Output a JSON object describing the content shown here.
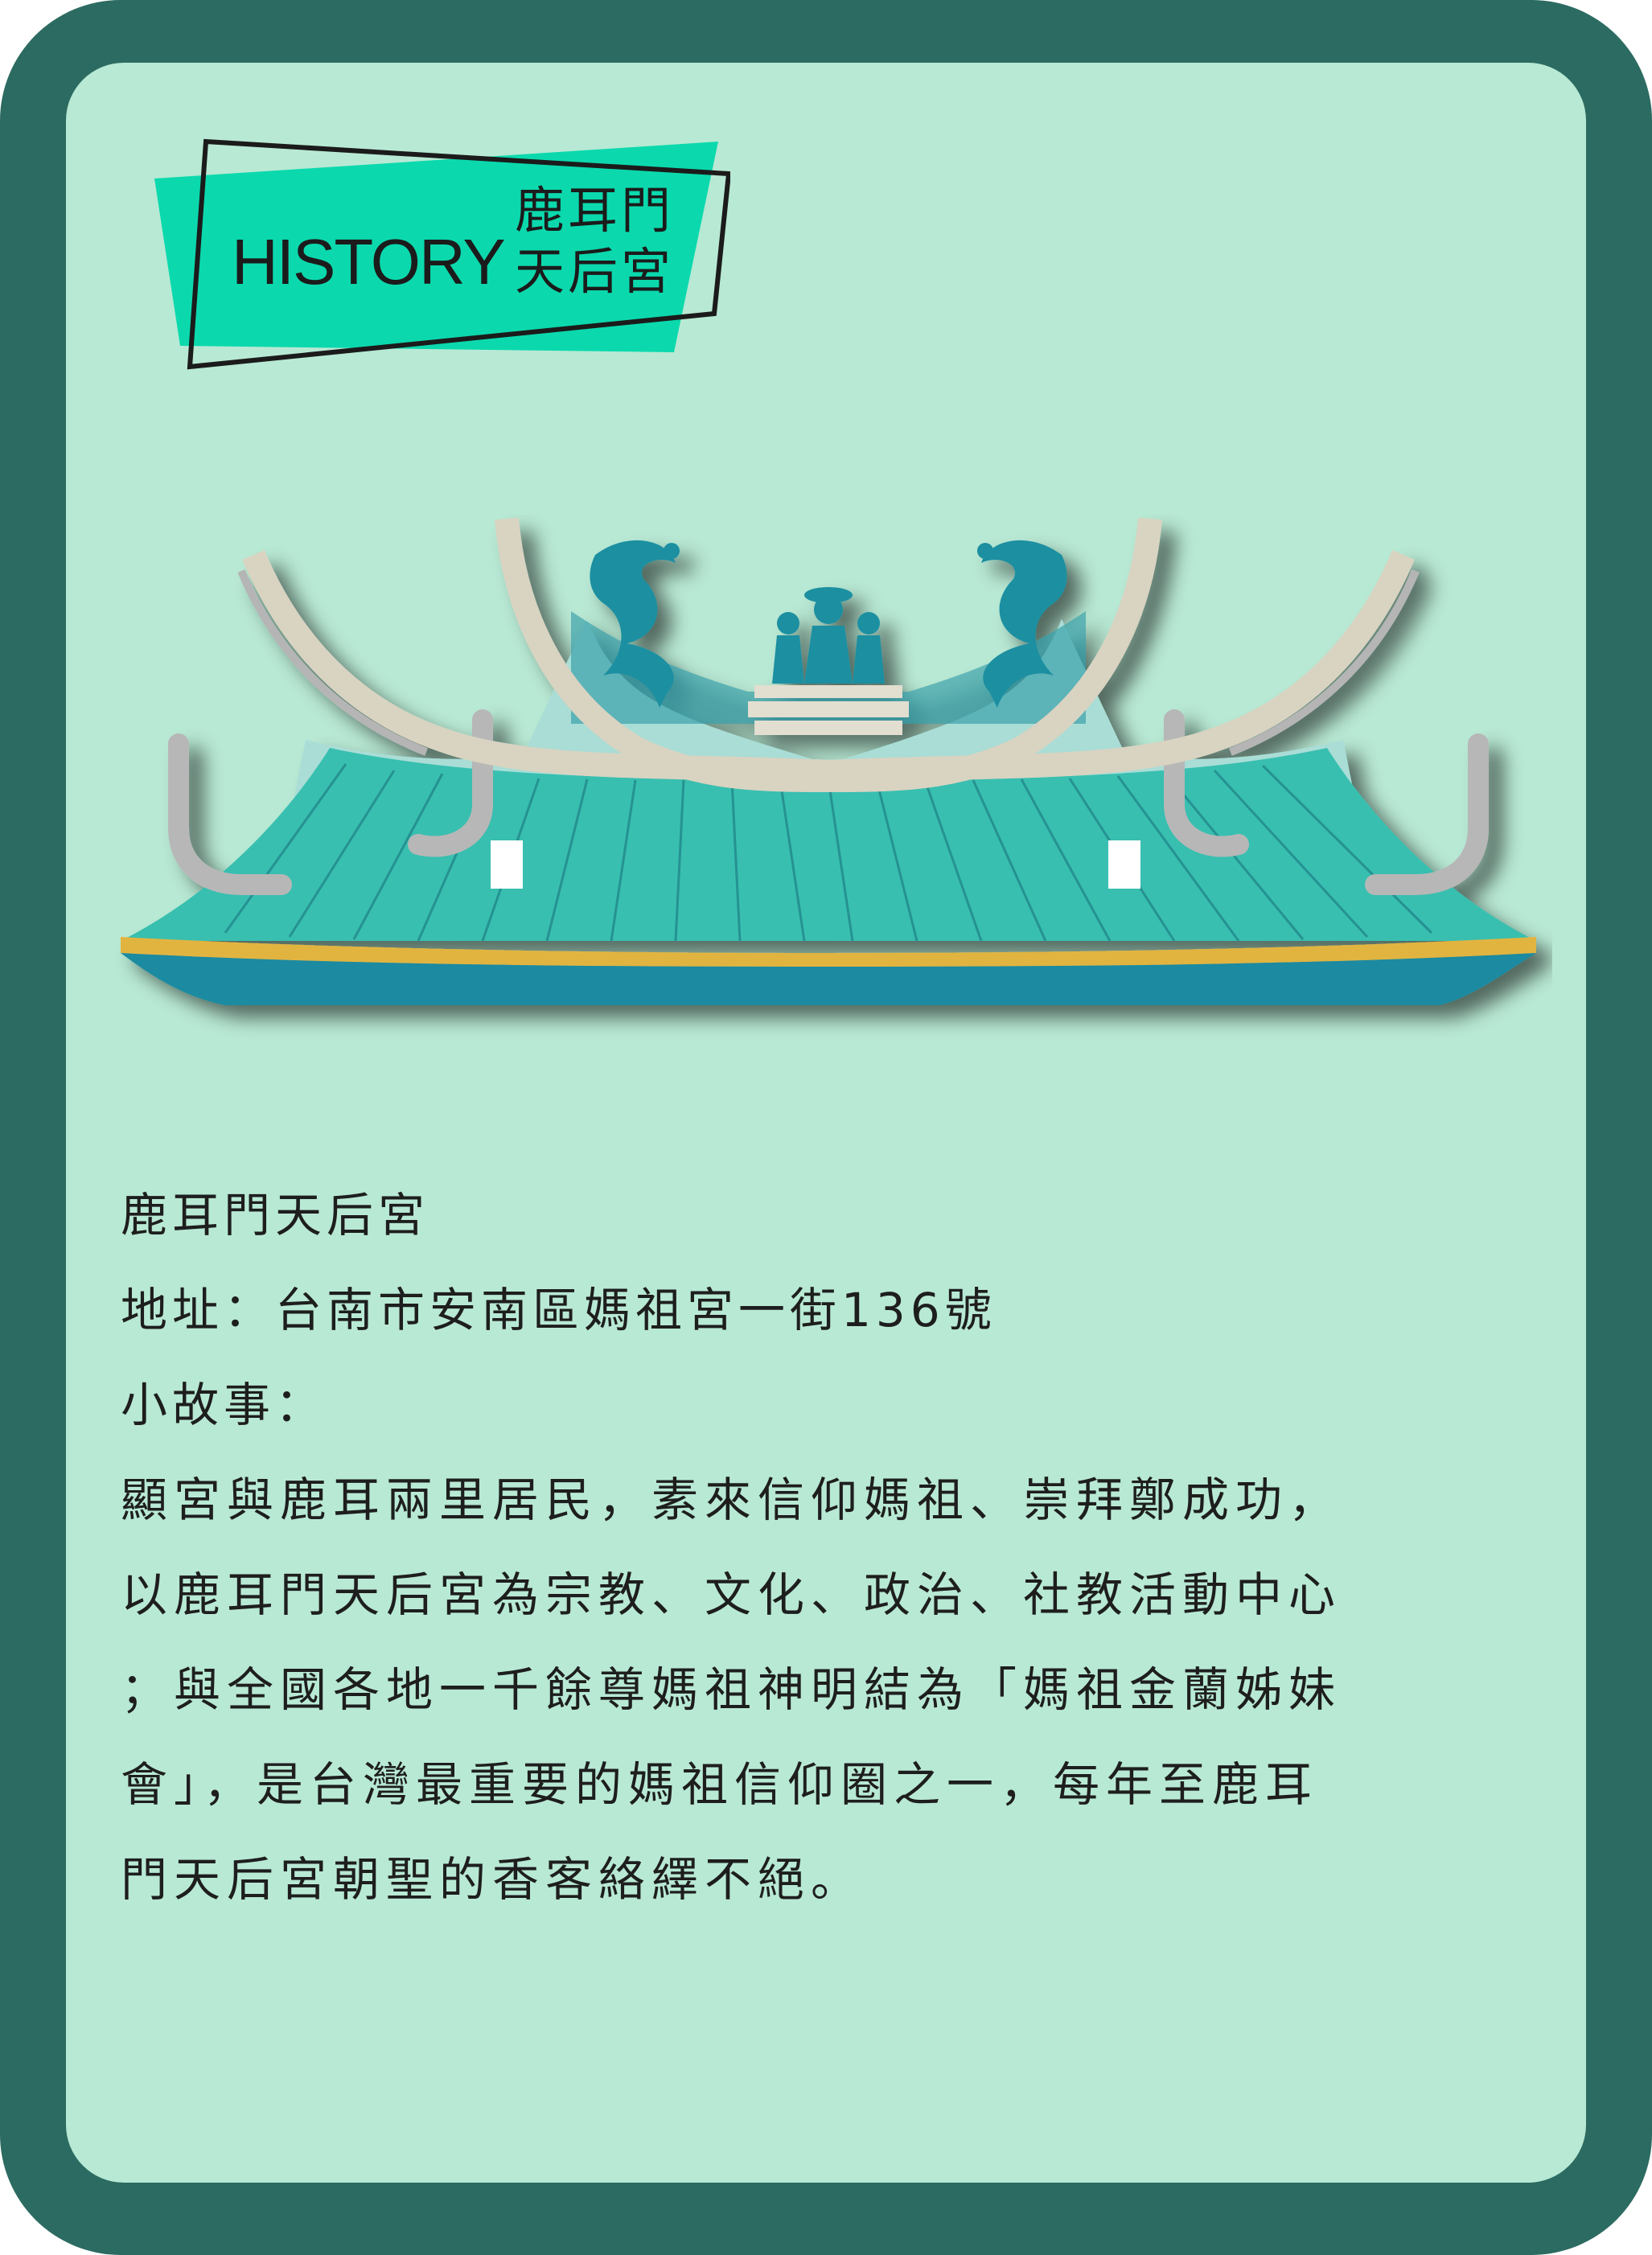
{
  "badge": {
    "label": "HISTORY",
    "name_line1": "鹿耳門",
    "name_line2": "天后宮"
  },
  "illustration": {
    "subject": "temple-roof-with-dragons-and-deity-figures"
  },
  "info": {
    "title": "鹿耳門天后宮",
    "address": "地址：台南市安南區媽祖宮一街136號",
    "story_label": "小故事：",
    "story_lines": [
      "顯宮與鹿耳兩里居民，素來信仰媽祖、崇拜鄭成功，",
      "以鹿耳門天后宮為宗教、文化、政治、社教活動中心",
      "；與全國各地一千餘尊媽祖神明結為「媽祖金蘭姊妹",
      "會」，是台灣最重要的媽祖信仰圈之一，每年至鹿耳",
      "門天后宮朝聖的香客絡繹不絕。"
    ]
  },
  "colors": {
    "frame": "#2c6b61",
    "card": "#b8e9d4",
    "badge_fill": "#0bd9ad",
    "roof_teal": "#38bfb0",
    "roof_dark": "#1b8aa0",
    "roof_gold": "#e1b441",
    "ridge_beige": "#d9d3c1",
    "dragon": "#1c8fa1"
  }
}
